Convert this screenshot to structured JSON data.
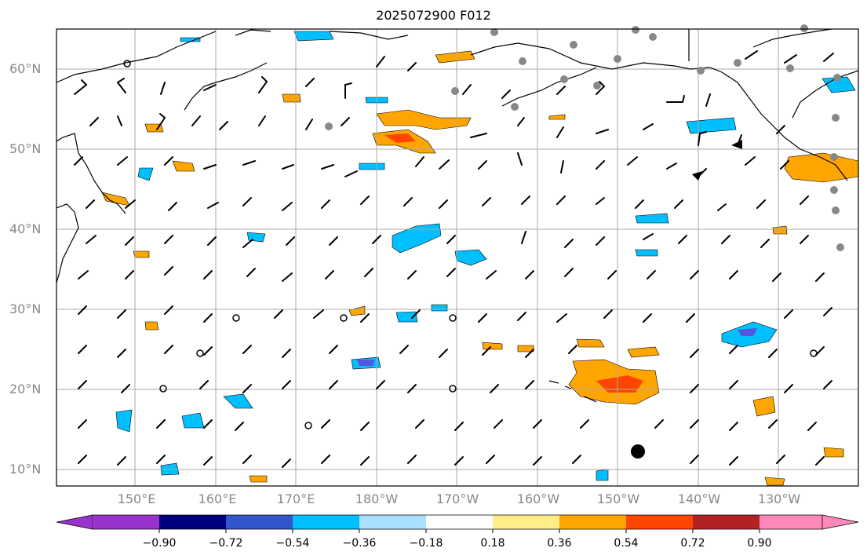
{
  "title": "2025072900 F012",
  "lat_labels": [
    "60°N",
    "50°N",
    "40°N",
    "30°N",
    "20°N",
    "10°N"
  ],
  "lon_labels": [
    "150°E",
    "160°E",
    "170°E",
    "180°W",
    "170°W",
    "160°W",
    "150°W",
    "140°W",
    "130°W"
  ],
  "colorbar": {
    "ticks": [
      "−0.90",
      "−0.72",
      "−0.54",
      "−0.36",
      "−0.18",
      "0.18",
      "0.36",
      "0.54",
      "0.72",
      "0.90"
    ],
    "colors": [
      "#9933cc",
      "#000080",
      "#3355cc",
      "#00bfff",
      "#aadfff",
      "#ffffff",
      "#ffee88",
      "#ffa500",
      "#ff4500",
      "#b22222",
      "#ff88bb"
    ]
  },
  "colors": {
    "grid": "#aaaaaa",
    "coast": "#000000",
    "station": "#888888"
  }
}
